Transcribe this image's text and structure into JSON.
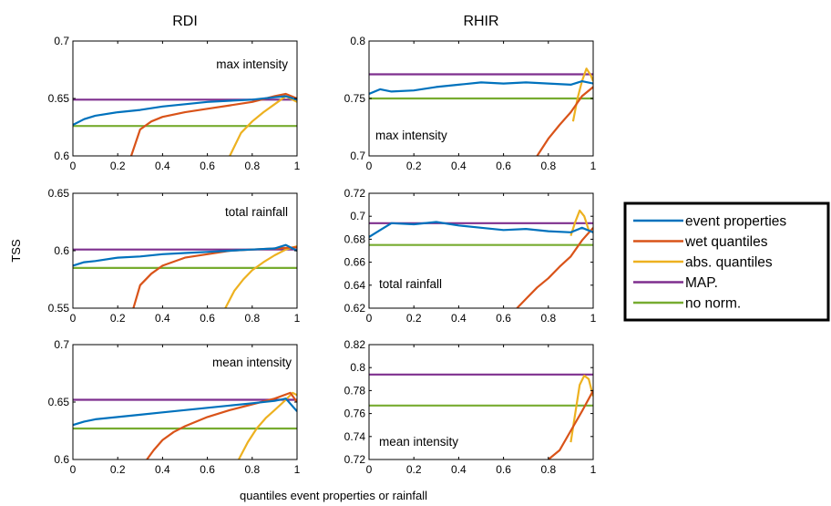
{
  "column_titles": [
    "RDI",
    "RHIR"
  ],
  "ylabel": "TSS",
  "xlabel": "quantiles event properties or rainfall",
  "legend": [
    {
      "label": "event properties",
      "color": "#0072BD"
    },
    {
      "label": "wet quantiles",
      "color": "#D95319"
    },
    {
      "label": "abs. quantiles",
      "color": "#EDB120"
    },
    {
      "label": "MAP.",
      "color": "#7E2F8E"
    },
    {
      "label": "no norm.",
      "color": "#77AC30"
    }
  ],
  "chart_data": [
    {
      "type": "line",
      "column": "RDI",
      "annotation": "max intensity",
      "xlim": [
        0,
        1
      ],
      "ylim": [
        0.6,
        0.7
      ],
      "xticks": [
        "0",
        "0.2",
        "0.4",
        "0.6",
        "0.8",
        "1"
      ],
      "yticks": [
        "0.6",
        "0.65",
        "0.7"
      ],
      "series": [
        {
          "name": "event properties",
          "x": [
            0,
            0.05,
            0.1,
            0.2,
            0.3,
            0.4,
            0.5,
            0.6,
            0.7,
            0.8,
            0.9,
            0.95,
            1.0
          ],
          "y": [
            0.627,
            0.632,
            0.635,
            0.638,
            0.64,
            0.643,
            0.645,
            0.647,
            0.648,
            0.649,
            0.651,
            0.652,
            0.649
          ]
        },
        {
          "name": "wet quantiles",
          "x": [
            0.26,
            0.3,
            0.35,
            0.4,
            0.5,
            0.6,
            0.7,
            0.8,
            0.9,
            0.95,
            1.0
          ],
          "y": [
            0.6,
            0.623,
            0.63,
            0.634,
            0.638,
            0.641,
            0.644,
            0.647,
            0.652,
            0.654,
            0.65
          ]
        },
        {
          "name": "abs. quantiles",
          "x": [
            0.7,
            0.75,
            0.8,
            0.85,
            0.9,
            0.95,
            1.0
          ],
          "y": [
            0.6,
            0.62,
            0.63,
            0.638,
            0.645,
            0.652,
            0.647
          ]
        },
        {
          "name": "MAP.",
          "x": [
            0,
            1
          ],
          "y": [
            0.649,
            0.649
          ]
        },
        {
          "name": "no norm.",
          "x": [
            0,
            1
          ],
          "y": [
            0.626,
            0.626
          ]
        }
      ]
    },
    {
      "type": "line",
      "column": "RHIR",
      "annotation": "max intensity",
      "xlim": [
        0,
        1
      ],
      "ylim": [
        0.7,
        0.8
      ],
      "xticks": [
        "0",
        "0.2",
        "0.4",
        "0.6",
        "0.8",
        "1"
      ],
      "yticks": [
        "0.7",
        "0.75",
        "0.8"
      ],
      "series": [
        {
          "name": "event properties",
          "x": [
            0,
            0.05,
            0.1,
            0.2,
            0.3,
            0.4,
            0.5,
            0.6,
            0.7,
            0.8,
            0.9,
            0.95,
            1.0
          ],
          "y": [
            0.754,
            0.758,
            0.756,
            0.757,
            0.76,
            0.762,
            0.764,
            0.763,
            0.764,
            0.763,
            0.762,
            0.765,
            0.763
          ]
        },
        {
          "name": "wet quantiles",
          "x": [
            0.75,
            0.8,
            0.85,
            0.9,
            0.95,
            1.0
          ],
          "y": [
            0.7,
            0.715,
            0.727,
            0.738,
            0.752,
            0.76
          ]
        },
        {
          "name": "abs. quantiles",
          "x": [
            0.91,
            0.93,
            0.95,
            0.97,
            0.99,
            1.0
          ],
          "y": [
            0.73,
            0.75,
            0.765,
            0.776,
            0.77,
            0.765
          ]
        },
        {
          "name": "MAP.",
          "x": [
            0,
            1
          ],
          "y": [
            0.771,
            0.771
          ]
        },
        {
          "name": "no norm.",
          "x": [
            0,
            1
          ],
          "y": [
            0.75,
            0.75
          ]
        }
      ]
    },
    {
      "type": "line",
      "column": "RDI",
      "annotation": "total rainfall",
      "xlim": [
        0,
        1
      ],
      "ylim": [
        0.55,
        0.65
      ],
      "xticks": [
        "0",
        "0.2",
        "0.4",
        "0.6",
        "0.8",
        "1"
      ],
      "yticks": [
        "0.55",
        "0.6",
        "0.65"
      ],
      "series": [
        {
          "name": "event properties",
          "x": [
            0,
            0.05,
            0.1,
            0.2,
            0.3,
            0.4,
            0.5,
            0.6,
            0.7,
            0.8,
            0.9,
            0.95,
            1.0
          ],
          "y": [
            0.587,
            0.59,
            0.591,
            0.594,
            0.595,
            0.597,
            0.598,
            0.599,
            0.6,
            0.601,
            0.602,
            0.605,
            0.6
          ]
        },
        {
          "name": "wet quantiles",
          "x": [
            0.27,
            0.3,
            0.35,
            0.4,
            0.5,
            0.6,
            0.7,
            0.8,
            0.9,
            1.0
          ],
          "y": [
            0.55,
            0.57,
            0.58,
            0.587,
            0.594,
            0.597,
            0.6,
            0.601,
            0.602,
            0.603
          ]
        },
        {
          "name": "abs. quantiles",
          "x": [
            0.68,
            0.72,
            0.76,
            0.8,
            0.85,
            0.9,
            0.95,
            1.0
          ],
          "y": [
            0.55,
            0.565,
            0.575,
            0.583,
            0.59,
            0.596,
            0.601,
            0.604
          ]
        },
        {
          "name": "MAP.",
          "x": [
            0,
            1
          ],
          "y": [
            0.601,
            0.601
          ]
        },
        {
          "name": "no norm.",
          "x": [
            0,
            1
          ],
          "y": [
            0.585,
            0.585
          ]
        }
      ]
    },
    {
      "type": "line",
      "column": "RHIR",
      "annotation": "total rainfall",
      "xlim": [
        0,
        1
      ],
      "ylim": [
        0.62,
        0.72
      ],
      "xticks": [
        "0",
        "0.2",
        "0.4",
        "0.6",
        "0.8",
        "1"
      ],
      "yticks": [
        "0.62",
        "0.64",
        "0.66",
        "0.68",
        "0.7",
        "0.72"
      ],
      "series": [
        {
          "name": "event properties",
          "x": [
            0,
            0.05,
            0.1,
            0.2,
            0.3,
            0.4,
            0.5,
            0.6,
            0.7,
            0.8,
            0.9,
            0.95,
            1.0
          ],
          "y": [
            0.682,
            0.688,
            0.694,
            0.693,
            0.695,
            0.692,
            0.69,
            0.688,
            0.689,
            0.687,
            0.686,
            0.69,
            0.686
          ]
        },
        {
          "name": "wet quantiles",
          "x": [
            0.66,
            0.7,
            0.75,
            0.8,
            0.85,
            0.9,
            0.95,
            1.0
          ],
          "y": [
            0.62,
            0.628,
            0.638,
            0.646,
            0.656,
            0.665,
            0.679,
            0.69
          ]
        },
        {
          "name": "abs. quantiles",
          "x": [
            0.9,
            0.92,
            0.94,
            0.96,
            0.98,
            1.0
          ],
          "y": [
            0.683,
            0.695,
            0.705,
            0.7,
            0.688,
            0.686
          ]
        },
        {
          "name": "MAP.",
          "x": [
            0,
            1
          ],
          "y": [
            0.694,
            0.694
          ]
        },
        {
          "name": "no norm.",
          "x": [
            0,
            1
          ],
          "y": [
            0.675,
            0.675
          ]
        }
      ]
    },
    {
      "type": "line",
      "column": "RDI",
      "annotation": "mean intensity",
      "xlim": [
        0,
        1
      ],
      "ylim": [
        0.6,
        0.7
      ],
      "xticks": [
        "0",
        "0.2",
        "0.4",
        "0.6",
        "0.8",
        "1"
      ],
      "yticks": [
        "0.6",
        "0.65",
        "0.7"
      ],
      "series": [
        {
          "name": "event properties",
          "x": [
            0,
            0.05,
            0.1,
            0.2,
            0.3,
            0.4,
            0.5,
            0.6,
            0.7,
            0.8,
            0.9,
            0.95,
            1.0
          ],
          "y": [
            0.63,
            0.633,
            0.635,
            0.637,
            0.639,
            0.641,
            0.643,
            0.645,
            0.647,
            0.649,
            0.651,
            0.653,
            0.642
          ]
        },
        {
          "name": "wet quantiles",
          "x": [
            0.33,
            0.36,
            0.4,
            0.45,
            0.5,
            0.6,
            0.7,
            0.8,
            0.9,
            0.97,
            1.0
          ],
          "y": [
            0.6,
            0.608,
            0.617,
            0.624,
            0.629,
            0.637,
            0.643,
            0.648,
            0.653,
            0.658,
            0.65
          ]
        },
        {
          "name": "abs. quantiles",
          "x": [
            0.74,
            0.78,
            0.82,
            0.86,
            0.9,
            0.95,
            0.98,
            1.0
          ],
          "y": [
            0.6,
            0.615,
            0.627,
            0.636,
            0.643,
            0.652,
            0.658,
            0.656
          ]
        },
        {
          "name": "MAP.",
          "x": [
            0,
            1
          ],
          "y": [
            0.652,
            0.652
          ]
        },
        {
          "name": "no norm.",
          "x": [
            0,
            1
          ],
          "y": [
            0.627,
            0.627
          ]
        }
      ]
    },
    {
      "type": "line",
      "column": "RHIR",
      "annotation": "mean intensity",
      "xlim": [
        0,
        1
      ],
      "ylim": [
        0.72,
        0.82
      ],
      "xticks": [
        "0",
        "0.2",
        "0.4",
        "0.6",
        "0.8",
        "1"
      ],
      "yticks": [
        "0.72",
        "0.74",
        "0.76",
        "0.78",
        "0.8",
        "0.82"
      ],
      "series": [
        {
          "name": "wet quantiles",
          "x": [
            0.8,
            0.85,
            0.9,
            0.95,
            1.0
          ],
          "y": [
            0.72,
            0.728,
            0.745,
            0.762,
            0.78
          ]
        },
        {
          "name": "abs. quantiles",
          "x": [
            0.9,
            0.92,
            0.94,
            0.96,
            0.98,
            1.0
          ],
          "y": [
            0.735,
            0.76,
            0.785,
            0.793,
            0.79,
            0.775
          ]
        },
        {
          "name": "MAP.",
          "x": [
            0,
            1
          ],
          "y": [
            0.794,
            0.794
          ]
        },
        {
          "name": "no norm.",
          "x": [
            0,
            1
          ],
          "y": [
            0.767,
            0.767
          ]
        }
      ]
    }
  ]
}
